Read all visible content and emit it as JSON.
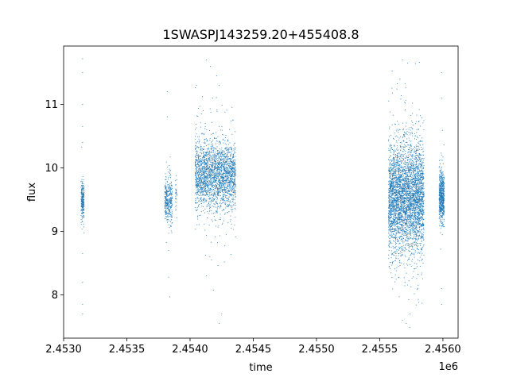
{
  "chart_data": {
    "type": "scatter",
    "title": "1SWASPJ143259.20+455408.8",
    "xlabel": "time",
    "ylabel": "flux",
    "x_offset_label": "1e6",
    "xlim": [
      2.453,
      2.45612
    ],
    "ylim": [
      7.32,
      11.92
    ],
    "x_ticks": [
      2.453,
      2.4535,
      2.454,
      2.4545,
      2.455,
      2.4555,
      2.456
    ],
    "x_tick_labels": [
      "2.4530",
      "2.4535",
      "2.4540",
      "2.4545",
      "2.4550",
      "2.4555",
      "2.4560"
    ],
    "y_ticks": [
      8,
      9,
      10,
      11
    ],
    "y_tick_labels": [
      "8",
      "9",
      "10",
      "11"
    ],
    "grid": false,
    "marker_color": "#1f77b4",
    "clusters": [
      {
        "x_center": 2.45315,
        "x_width": 1.2e-05,
        "y_center": 9.5,
        "y_sd": 0.13,
        "count": 260,
        "outliers": [
          [
            2.45315,
            11.72
          ],
          [
            2.45315,
            11.5
          ],
          [
            2.45315,
            11.0
          ],
          [
            2.45315,
            10.65
          ],
          [
            2.45315,
            10.4
          ],
          [
            2.45315,
            8.2
          ],
          [
            2.45315,
            7.85
          ],
          [
            2.45315,
            7.7
          ],
          [
            2.45315,
            8.65
          ]
        ]
      },
      {
        "x_center": 2.45383,
        "x_width": 3e-05,
        "y_center": 9.5,
        "y_sd": 0.17,
        "count": 380,
        "outliers": [
          [
            2.45382,
            11.2
          ],
          [
            2.45383,
            8.28
          ],
          [
            2.45384,
            7.97
          ],
          [
            2.45383,
            8.7
          ]
        ]
      },
      {
        "x_center": 2.45389,
        "x_width": 5e-06,
        "y_center": 9.62,
        "y_sd": 0.16,
        "count": 30,
        "outliers": []
      },
      {
        "x_center": 2.4542,
        "x_width": 0.00016,
        "y_center": 9.88,
        "y_sd": 0.27,
        "count": 2400,
        "outliers": [
          [
            2.45413,
            11.7
          ],
          [
            2.45416,
            11.6
          ],
          [
            2.45421,
            11.45
          ],
          [
            2.45423,
            11.3
          ],
          [
            2.45418,
            11.1
          ],
          [
            2.45413,
            8.3
          ],
          [
            2.45417,
            8.55
          ],
          [
            2.45423,
            7.55
          ],
          [
            2.45425,
            7.7
          ]
        ]
      },
      {
        "x_center": 2.45571,
        "x_width": 0.00014,
        "y_center": 9.55,
        "y_sd": 0.42,
        "count": 4000,
        "outliers": [
          [
            2.45568,
            11.7
          ],
          [
            2.45572,
            11.65
          ],
          [
            2.45566,
            11.4
          ],
          [
            2.45568,
            7.6
          ],
          [
            2.45571,
            7.55
          ],
          [
            2.45574,
            7.7
          ]
        ]
      },
      {
        "x_center": 2.45599,
        "x_width": 2e-05,
        "y_center": 9.55,
        "y_sd": 0.2,
        "count": 600,
        "outliers": [
          [
            2.45599,
            11.5
          ],
          [
            2.45599,
            11.1
          ],
          [
            2.45599,
            7.85
          ],
          [
            2.45599,
            8.1
          ]
        ]
      }
    ]
  }
}
